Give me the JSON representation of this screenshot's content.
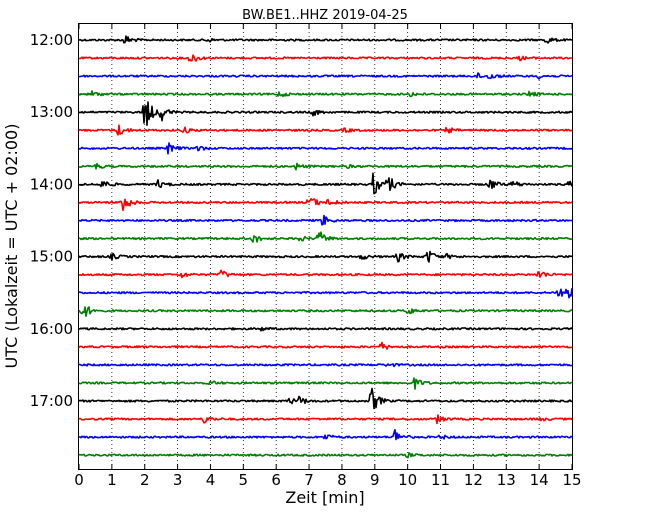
{
  "chart_data": {
    "type": "line",
    "title": "BW.BE1..HHZ 2019-04-25",
    "xlabel": "Zeit  [min]",
    "ylabel": "UTC (Lokalzeit = UTC + 02:00)",
    "xlim": [
      0,
      15
    ],
    "xticks": [
      "0",
      "1",
      "2",
      "3",
      "4",
      "5",
      "6",
      "7",
      "8",
      "9",
      "10",
      "11",
      "12",
      "13",
      "14",
      "15"
    ],
    "ytick_labels": [
      "12:00",
      "13:00",
      "14:00",
      "15:00",
      "16:00",
      "17:00"
    ],
    "vertical_grid": "dotted",
    "colors": [
      "#000000",
      "#ff0000",
      "#0000ff",
      "#008000"
    ],
    "traces": [
      {
        "start": "12:00",
        "events": [
          [
            1.4,
            5
          ],
          [
            3.9,
            2
          ],
          [
            14.2,
            4
          ]
        ]
      },
      {
        "start": "12:15",
        "events": [
          [
            3.4,
            6
          ],
          [
            13.4,
            2
          ]
        ]
      },
      {
        "start": "12:30",
        "events": [
          [
            12.1,
            3
          ],
          [
            12.5,
            3
          ],
          [
            14.0,
            2
          ]
        ]
      },
      {
        "start": "12:45",
        "events": [
          [
            0.4,
            3
          ],
          [
            6.1,
            3
          ],
          [
            13.7,
            3
          ],
          [
            10.1,
            2
          ]
        ]
      },
      {
        "start": "13:00",
        "events": [
          [
            2.0,
            20
          ],
          [
            2.5,
            8
          ],
          [
            7.1,
            4
          ]
        ]
      },
      {
        "start": "13:15",
        "events": [
          [
            1.2,
            6
          ],
          [
            3.2,
            3
          ],
          [
            8.1,
            2
          ],
          [
            11.2,
            3
          ]
        ]
      },
      {
        "start": "13:30",
        "events": [
          [
            2.7,
            6
          ],
          [
            3.6,
            3
          ]
        ]
      },
      {
        "start": "13:45",
        "events": [
          [
            0.5,
            3
          ],
          [
            6.6,
            3
          ],
          [
            8.1,
            2
          ]
        ]
      },
      {
        "start": "14:00",
        "events": [
          [
            0.7,
            5
          ],
          [
            2.4,
            4
          ],
          [
            8.95,
            12
          ],
          [
            9.4,
            9
          ],
          [
            12.5,
            6
          ],
          [
            13.2,
            4
          ],
          [
            14.9,
            3
          ]
        ]
      },
      {
        "start": "14:15",
        "events": [
          [
            1.3,
            12
          ],
          [
            7.0,
            8
          ],
          [
            7.6,
            4
          ]
        ]
      },
      {
        "start": "14:30",
        "events": [
          [
            7.4,
            6
          ]
        ]
      },
      {
        "start": "14:45",
        "events": [
          [
            5.3,
            5
          ],
          [
            7.3,
            8
          ],
          [
            6.7,
            3
          ]
        ]
      },
      {
        "start": "15:00",
        "events": [
          [
            1.0,
            3
          ],
          [
            8.6,
            3
          ],
          [
            9.7,
            5
          ],
          [
            10.6,
            8
          ],
          [
            11.2,
            2
          ]
        ]
      },
      {
        "start": "15:15",
        "events": [
          [
            3.1,
            3
          ],
          [
            4.3,
            5
          ],
          [
            14.0,
            5
          ]
        ]
      },
      {
        "start": "15:30",
        "events": [
          [
            14.6,
            8
          ],
          [
            14.85,
            8
          ]
        ]
      },
      {
        "start": "15:45",
        "events": [
          [
            0.1,
            10
          ],
          [
            10.0,
            4
          ]
        ]
      },
      {
        "start": "16:00",
        "events": [
          [
            5.5,
            2
          ]
        ]
      },
      {
        "start": "16:15",
        "events": [
          [
            9.2,
            4
          ]
        ]
      },
      {
        "start": "16:30",
        "events": [
          [
            9.4,
            2
          ]
        ]
      },
      {
        "start": "16:45",
        "events": [
          [
            10.2,
            6
          ],
          [
            4.0,
            2
          ]
        ]
      },
      {
        "start": "17:00",
        "events": [
          [
            8.9,
            14
          ],
          [
            6.7,
            4
          ],
          [
            6.4,
            3
          ]
        ]
      },
      {
        "start": "17:15",
        "events": [
          [
            3.8,
            4
          ],
          [
            10.9,
            4
          ],
          [
            14.0,
            2
          ]
        ]
      },
      {
        "start": "17:30",
        "events": [
          [
            9.6,
            8
          ],
          [
            7.5,
            3
          ],
          [
            11.0,
            2
          ]
        ]
      },
      {
        "start": "17:45",
        "events": [
          [
            10.0,
            2
          ]
        ]
      }
    ]
  }
}
